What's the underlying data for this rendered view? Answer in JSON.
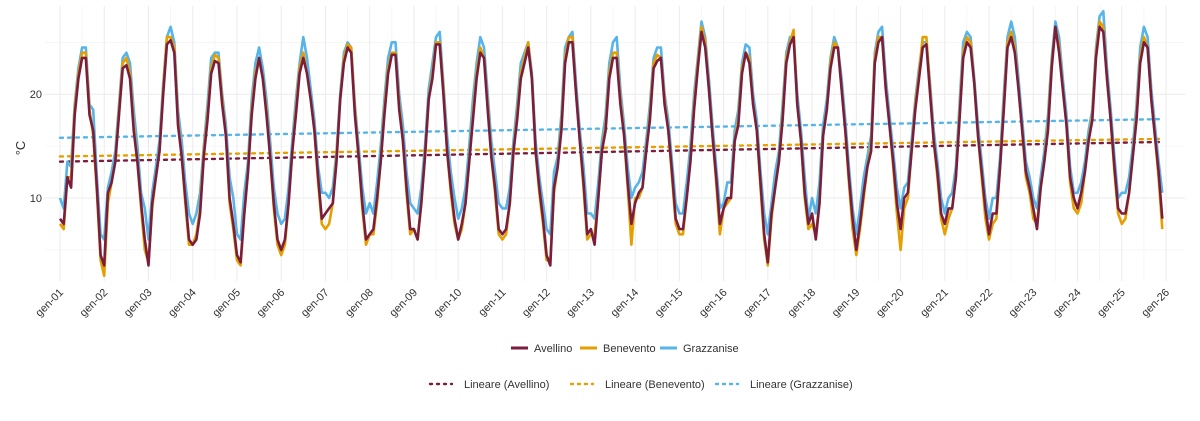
{
  "chart_data": {
    "type": "line",
    "ylabel": "°C",
    "ylim": [
      2,
      28.5
    ],
    "yticks": [
      10,
      20
    ],
    "xlim": [
      2001,
      2026.05
    ],
    "xticks": [
      "gen-01",
      "gen-02",
      "gen-03",
      "gen-04",
      "gen-05",
      "gen-06",
      "gen-07",
      "gen-08",
      "gen-09",
      "gen-10",
      "gen-11",
      "gen-12",
      "gen-13",
      "gen-14",
      "gen-15",
      "gen-16",
      "gen-17",
      "gen-18",
      "gen-19",
      "gen-20",
      "gen-21",
      "gen-22",
      "gen-23",
      "gen-24",
      "gen-25",
      "gen-26"
    ],
    "grid": true,
    "legend_placement": "bottom",
    "x_start": "gen-01",
    "x_step": "1 month",
    "series": [
      {
        "name": "Avellino",
        "color": "#7b1e3e",
        "values": [
          [
            8.0,
            7.5,
            12.0,
            11.0,
            18.0,
            21.5,
            23.5,
            23.5,
            18.0,
            16.5,
            11.0,
            4.5
          ],
          [
            3.5,
            10.5,
            11.5,
            13.5,
            18.0,
            22.5,
            22.8,
            21.5,
            16.5,
            13.5,
            9.5,
            6.0
          ],
          [
            3.5,
            9.5,
            12.0,
            14.5,
            20.0,
            24.8,
            25.2,
            24.0,
            17.0,
            14.0,
            10.0,
            6.0
          ],
          [
            5.5,
            6.0,
            8.5,
            14.0,
            17.5,
            22.0,
            23.2,
            23.0,
            19.0,
            16.0,
            10.0,
            7.5
          ],
          [
            4.5,
            3.8,
            8.5,
            12.5,
            18.0,
            21.5,
            23.5,
            21.5,
            18.0,
            14.0,
            9.5,
            6.0
          ],
          [
            5.0,
            6.0,
            9.5,
            14.5,
            18.0,
            22.0,
            23.5,
            22.0,
            19.5,
            16.5,
            12.0,
            8.0
          ],
          [
            8.5,
            9.0,
            9.5,
            13.5,
            19.5,
            23.0,
            24.5,
            24.0,
            18.0,
            14.0,
            9.5,
            6.0
          ],
          [
            6.5,
            7.0,
            10.0,
            13.5,
            18.0,
            22.0,
            23.8,
            23.8,
            18.5,
            15.5,
            11.0,
            7.0
          ],
          [
            7.0,
            6.0,
            9.5,
            14.0,
            19.5,
            21.5,
            24.8,
            24.8,
            20.0,
            14.5,
            11.0,
            8.0
          ],
          [
            6.0,
            7.5,
            9.5,
            13.5,
            17.5,
            21.5,
            24.0,
            23.5,
            18.5,
            14.0,
            11.0,
            7.0
          ],
          [
            6.5,
            7.0,
            9.5,
            14.5,
            17.5,
            21.5,
            23.0,
            24.5,
            21.5,
            14.5,
            11.0,
            8.0
          ],
          [
            4.5,
            3.5,
            11.0,
            13.0,
            16.5,
            23.0,
            25.0,
            25.0,
            20.0,
            15.5,
            11.5,
            6.5
          ],
          [
            7.0,
            5.5,
            10.0,
            14.5,
            16.5,
            21.5,
            23.5,
            23.5,
            19.0,
            16.0,
            11.5,
            7.5
          ],
          [
            9.5,
            10.5,
            11.0,
            14.5,
            17.5,
            22.5,
            23.2,
            23.5,
            19.0,
            16.5,
            12.5,
            8.0
          ],
          [
            7.0,
            7.0,
            10.0,
            13.5,
            18.5,
            22.5,
            26.0,
            24.5,
            20.5,
            16.0,
            12.0,
            7.5
          ],
          [
            9.0,
            10.0,
            10.0,
            15.5,
            17.0,
            22.0,
            24.0,
            23.0,
            19.0,
            16.5,
            11.5,
            6.5
          ],
          [
            3.8,
            8.5,
            11.0,
            13.5,
            17.5,
            23.0,
            24.8,
            25.5,
            19.0,
            15.5,
            10.5,
            7.5
          ],
          [
            8.5,
            6.0,
            9.5,
            16.0,
            18.5,
            22.5,
            24.5,
            24.5,
            20.5,
            16.5,
            12.0,
            8.0
          ],
          [
            5.0,
            7.5,
            10.5,
            13.0,
            14.5,
            23.0,
            25.0,
            25.5,
            20.5,
            17.0,
            13.5,
            9.5
          ],
          [
            7.0,
            10.0,
            10.5,
            14.5,
            18.5,
            21.5,
            24.5,
            24.8,
            20.0,
            15.5,
            12.5,
            8.5
          ],
          [
            7.5,
            9.0,
            9.0,
            12.0,
            17.5,
            23.5,
            25.0,
            24.5,
            21.0,
            16.0,
            12.5,
            9.0
          ],
          [
            6.5,
            8.5,
            8.5,
            13.0,
            18.5,
            24.5,
            25.5,
            24.0,
            20.5,
            16.5,
            12.5,
            11.0
          ],
          [
            9.0,
            7.0,
            11.0,
            13.5,
            16.5,
            22.5,
            26.5,
            24.0,
            20.5,
            17.0,
            12.0,
            10.0
          ],
          [
            9.0,
            10.5,
            12.5,
            15.5,
            17.5,
            23.5,
            26.5,
            26.0,
            21.5,
            17.5,
            13.0,
            9.0
          ],
          [
            8.5,
            8.5,
            10.5,
            14.0,
            17.5,
            23.0,
            25.0,
            24.5,
            19.5,
            16.0,
            12.5,
            8.0
          ]
        ],
        "trend": [
          13.5,
          15.4
        ]
      },
      {
        "name": "Benevento",
        "color": "#e69f00",
        "values": [
          [
            7.5,
            7.0,
            12.0,
            12.0,
            18.5,
            22.0,
            24.0,
            24.0,
            18.5,
            16.0,
            10.5,
            4.0
          ],
          [
            2.5,
            9.5,
            11.5,
            13.5,
            18.5,
            23.0,
            23.5,
            22.0,
            17.0,
            13.5,
            9.0,
            5.0
          ],
          [
            3.8,
            9.0,
            12.0,
            14.5,
            20.5,
            25.5,
            25.5,
            24.5,
            17.5,
            14.0,
            9.5,
            5.5
          ],
          [
            5.5,
            6.5,
            9.0,
            14.5,
            18.0,
            22.5,
            23.8,
            23.5,
            19.5,
            16.0,
            9.5,
            7.0
          ],
          [
            4.0,
            3.5,
            8.5,
            12.5,
            18.5,
            22.0,
            23.5,
            21.5,
            18.5,
            14.0,
            9.0,
            5.5
          ],
          [
            4.5,
            5.5,
            9.5,
            14.5,
            18.5,
            22.5,
            24.0,
            22.0,
            19.5,
            16.5,
            11.5,
            7.5
          ],
          [
            7.0,
            7.5,
            9.5,
            14.0,
            19.5,
            23.5,
            24.8,
            24.5,
            18.5,
            14.0,
            9.0,
            5.5
          ],
          [
            6.5,
            6.5,
            9.5,
            13.5,
            18.5,
            22.5,
            24.0,
            24.0,
            19.0,
            15.5,
            10.5,
            6.5
          ],
          [
            7.0,
            6.0,
            9.5,
            14.0,
            19.5,
            22.0,
            25.0,
            25.0,
            20.5,
            14.5,
            10.5,
            7.5
          ],
          [
            6.0,
            7.0,
            9.5,
            13.5,
            18.0,
            22.0,
            24.5,
            23.5,
            19.0,
            14.0,
            10.5,
            6.5
          ],
          [
            6.0,
            6.5,
            9.5,
            14.5,
            18.0,
            22.0,
            23.5,
            25.0,
            21.5,
            14.5,
            10.5,
            7.5
          ],
          [
            4.0,
            4.0,
            10.5,
            13.0,
            17.0,
            23.5,
            25.5,
            25.5,
            20.0,
            15.5,
            11.0,
            6.0
          ],
          [
            6.5,
            6.5,
            10.0,
            14.5,
            17.0,
            22.0,
            24.0,
            24.0,
            19.5,
            16.0,
            11.0,
            5.5
          ],
          [
            10.0,
            10.0,
            11.0,
            14.5,
            18.0,
            23.0,
            23.8,
            23.5,
            19.5,
            16.5,
            12.0,
            7.5
          ],
          [
            6.5,
            6.5,
            10.0,
            13.5,
            19.0,
            23.0,
            26.5,
            25.0,
            20.5,
            16.0,
            11.5,
            6.5
          ],
          [
            9.0,
            9.5,
            10.0,
            15.5,
            17.5,
            22.5,
            24.0,
            23.5,
            19.0,
            16.5,
            11.0,
            6.0
          ],
          [
            3.5,
            8.0,
            11.0,
            13.5,
            18.0,
            23.5,
            25.0,
            26.2,
            19.0,
            15.5,
            10.0,
            7.0
          ],
          [
            7.5,
            6.5,
            9.5,
            16.0,
            18.5,
            23.0,
            25.0,
            24.5,
            20.5,
            16.5,
            11.5,
            7.0
          ],
          [
            4.5,
            7.0,
            10.0,
            13.0,
            15.0,
            23.5,
            25.5,
            25.5,
            20.5,
            17.0,
            13.0,
            8.5
          ],
          [
            5.0,
            9.0,
            10.0,
            14.5,
            19.0,
            22.0,
            25.5,
            25.5,
            20.5,
            15.5,
            12.0,
            8.0
          ],
          [
            6.5,
            8.0,
            9.0,
            12.0,
            18.0,
            24.0,
            25.5,
            25.0,
            21.0,
            16.0,
            12.0,
            8.0
          ],
          [
            6.0,
            7.5,
            8.0,
            13.0,
            19.0,
            25.0,
            26.0,
            24.5,
            20.5,
            16.5,
            12.0,
            10.5
          ],
          [
            8.0,
            7.5,
            11.0,
            13.5,
            17.0,
            23.0,
            26.5,
            24.5,
            20.5,
            17.0,
            11.5,
            9.0
          ],
          [
            8.5,
            9.5,
            12.5,
            15.5,
            18.0,
            24.0,
            27.0,
            26.5,
            21.5,
            17.5,
            12.5,
            8.5
          ],
          [
            7.5,
            8.0,
            10.5,
            14.0,
            18.0,
            23.5,
            25.5,
            24.5,
            19.5,
            16.0,
            12.0,
            7.0
          ]
        ],
        "trend": [
          14.0,
          15.7
        ]
      },
      {
        "name": "Grazzanise",
        "color": "#56b4e9",
        "values": [
          [
            10.0,
            9.0,
            13.5,
            13.0,
            19.0,
            22.5,
            24.5,
            24.5,
            19.0,
            18.5,
            12.0,
            6.5
          ],
          [
            6.0,
            11.0,
            12.5,
            14.5,
            19.0,
            23.5,
            24.0,
            23.0,
            18.5,
            15.0,
            10.5,
            9.0
          ],
          [
            6.0,
            10.5,
            13.0,
            15.5,
            21.0,
            25.5,
            26.5,
            25.0,
            18.5,
            15.5,
            11.5,
            8.5
          ],
          [
            7.5,
            8.5,
            10.5,
            15.0,
            19.0,
            23.5,
            24.0,
            24.0,
            20.0,
            17.0,
            12.0,
            10.0
          ],
          [
            6.5,
            6.0,
            10.5,
            13.5,
            19.5,
            23.0,
            24.5,
            22.5,
            19.5,
            15.5,
            11.0,
            8.5
          ],
          [
            7.5,
            8.0,
            11.0,
            15.5,
            19.5,
            23.0,
            25.5,
            23.5,
            20.5,
            17.5,
            13.0,
            10.5
          ],
          [
            10.5,
            10.0,
            11.0,
            14.5,
            20.0,
            24.0,
            25.0,
            24.5,
            19.0,
            15.0,
            11.0,
            8.5
          ],
          [
            9.5,
            8.5,
            11.5,
            15.0,
            19.5,
            23.5,
            25.0,
            25.0,
            20.0,
            17.0,
            12.5,
            9.5
          ],
          [
            9.0,
            8.5,
            11.0,
            15.0,
            20.5,
            23.0,
            25.5,
            26.0,
            21.0,
            16.0,
            12.5,
            10.0
          ],
          [
            8.0,
            9.0,
            11.0,
            15.0,
            19.5,
            23.0,
            25.5,
            24.5,
            20.0,
            15.5,
            12.5,
            9.5
          ],
          [
            9.0,
            9.0,
            11.0,
            15.5,
            19.0,
            23.0,
            24.0,
            25.0,
            22.0,
            15.5,
            12.0,
            9.5
          ],
          [
            7.0,
            6.5,
            12.5,
            14.0,
            18.0,
            24.5,
            25.5,
            26.0,
            21.0,
            16.5,
            13.0,
            8.5
          ],
          [
            8.5,
            8.0,
            11.5,
            15.5,
            18.0,
            23.0,
            25.0,
            25.5,
            20.5,
            17.0,
            13.0,
            10.0
          ],
          [
            11.0,
            11.5,
            12.5,
            15.5,
            19.0,
            23.5,
            24.5,
            24.5,
            20.0,
            17.5,
            13.5,
            9.5
          ],
          [
            8.5,
            8.5,
            11.5,
            15.0,
            20.0,
            23.5,
            27.0,
            25.5,
            21.5,
            17.0,
            13.0,
            9.0
          ],
          [
            9.5,
            11.5,
            11.5,
            16.5,
            18.5,
            23.0,
            24.8,
            24.5,
            20.0,
            17.5,
            12.5,
            8.5
          ],
          [
            6.5,
            9.5,
            12.5,
            14.5,
            19.0,
            24.0,
            25.5,
            25.5,
            20.0,
            16.5,
            12.0,
            8.0
          ],
          [
            10.0,
            8.5,
            11.5,
            17.0,
            19.5,
            23.5,
            25.5,
            24.5,
            21.5,
            17.5,
            13.0,
            9.0
          ],
          [
            6.5,
            9.0,
            12.0,
            14.0,
            16.0,
            24.0,
            26.0,
            26.5,
            21.5,
            18.0,
            14.5,
            11.0
          ],
          [
            9.0,
            11.0,
            11.5,
            15.5,
            19.5,
            22.5,
            25.0,
            25.0,
            21.0,
            16.5,
            13.5,
            10.0
          ],
          [
            8.5,
            10.0,
            10.5,
            13.0,
            19.0,
            25.0,
            26.0,
            25.5,
            21.5,
            17.0,
            13.5,
            10.0
          ],
          [
            8.0,
            10.0,
            10.0,
            14.0,
            20.0,
            25.5,
            27.0,
            25.5,
            21.5,
            17.5,
            13.5,
            12.0
          ],
          [
            10.0,
            9.0,
            12.0,
            14.5,
            18.0,
            23.5,
            27.0,
            25.5,
            21.5,
            18.0,
            13.0,
            10.5
          ],
          [
            10.5,
            11.5,
            13.5,
            16.5,
            18.5,
            24.5,
            27.5,
            28.0,
            22.5,
            18.5,
            14.0,
            10.0
          ],
          [
            10.5,
            10.5,
            12.0,
            15.0,
            19.0,
            24.5,
            26.5,
            25.5,
            20.5,
            17.0,
            13.5,
            10.5
          ]
        ],
        "trend": [
          15.8,
          17.6
        ]
      }
    ],
    "legend": {
      "lines": [
        "Avellino",
        "Benevento",
        "Grazzanise"
      ],
      "trends": [
        "Lineare (Avellino)",
        "Lineare (Benevento)",
        "Lineare (Grazzanise)"
      ]
    }
  }
}
